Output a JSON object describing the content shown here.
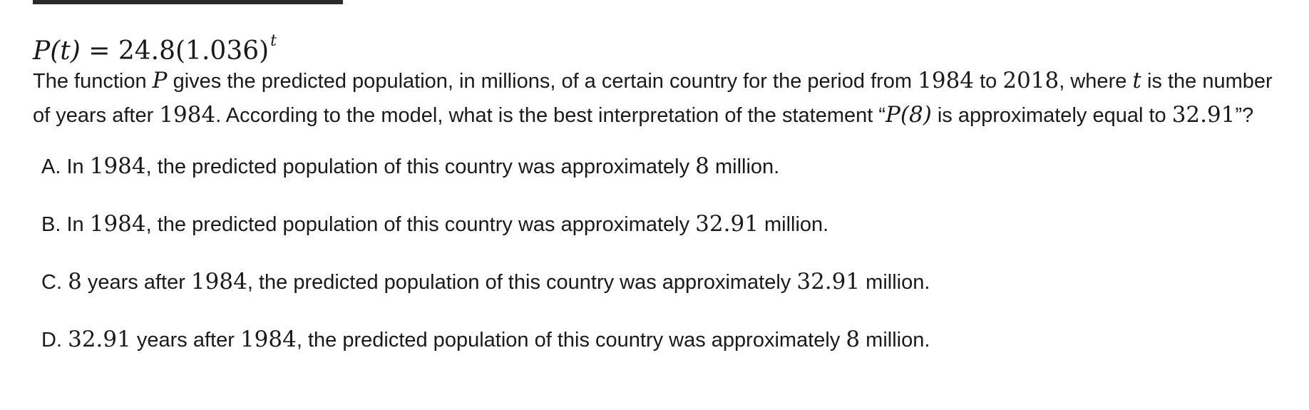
{
  "question": {
    "formula": {
      "lhs": "P(t)",
      "eq": "=",
      "rhs_base": "24.8(1.036)",
      "exponent": "t"
    },
    "prompt_parts": {
      "p1": "The function ",
      "m1": "P",
      "p2": " gives the predicted population, in millions, of a certain country for the period from ",
      "m2": "1984",
      "p3": " to ",
      "m3": "2018",
      "p4": ", where ",
      "m4": "t",
      "p5": " is the number of years after ",
      "m5": "1984",
      "p6": ". According to the model, what is the best interpretation of the statement “",
      "m6": "P(8)",
      "p7": " is approximately equal to ",
      "m7": "32.91",
      "p8": "”?"
    }
  },
  "choices": [
    {
      "letter": "A.",
      "t1": " In ",
      "m1": "1984",
      "t2": ", the predicted population of this country was approximately ",
      "m2": "8",
      "t3": " million."
    },
    {
      "letter": "B.",
      "t1": " In ",
      "m1": "1984",
      "t2": ", the predicted population of this country was approximately ",
      "m2": "32.91",
      "t3": " million."
    },
    {
      "letter": "C.",
      "t1": " ",
      "m1": "8",
      "t2": " years after ",
      "m2": "1984",
      "t3": ", the predicted population of this country was approximately ",
      "m3": "32.91",
      "t4": " million."
    },
    {
      "letter": "D.",
      "t1": " ",
      "m1": "32.91",
      "t2": " years after ",
      "m2": "1984",
      "t3": ", the predicted population of this country was approximately ",
      "m3": "8",
      "t4": " million."
    }
  ]
}
